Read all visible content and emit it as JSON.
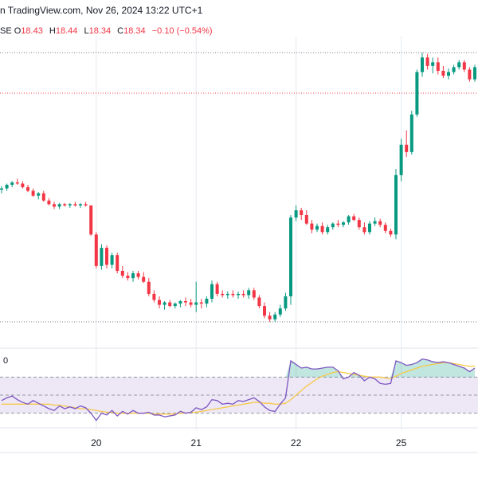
{
  "header": {
    "publish_text": "n TradingView.com, Nov 26, 2024 13:22 UTC+1"
  },
  "ohlc": {
    "exchange_fragment": "SE",
    "open_label": "O",
    "open": "18.43",
    "high_label": "H",
    "high": "18.44",
    "low_label": "L",
    "low": "18.34",
    "close_label": "C",
    "close": "18.34",
    "change": "−0.10 (−0.54%)"
  },
  "rsi_label": "0",
  "colors": {
    "up": "#089981",
    "down": "#f23645",
    "rsi_line": "#7e57c2",
    "rsi_ma": "#f7c948",
    "rsi_band": "#ede7f6",
    "grid": "#e6e9f0"
  },
  "chart_data": {
    "type": "candlestick",
    "x_tick_labels": [
      "20",
      "21",
      "22",
      "25"
    ],
    "price_reference_lines": [
      "dotted-top",
      "dotted-mid",
      "dotted-low"
    ],
    "candles": [
      {
        "o": 43,
        "h": 46,
        "l": 40,
        "c": 44
      },
      {
        "o": 44,
        "h": 48,
        "l": 42,
        "c": 47
      },
      {
        "o": 47,
        "h": 50,
        "l": 45,
        "c": 49
      },
      {
        "o": 49,
        "h": 52,
        "l": 47,
        "c": 48
      },
      {
        "o": 48,
        "h": 50,
        "l": 44,
        "c": 45
      },
      {
        "o": 45,
        "h": 47,
        "l": 41,
        "c": 42
      },
      {
        "o": 42,
        "h": 44,
        "l": 37,
        "c": 38
      },
      {
        "o": 38,
        "h": 41,
        "l": 35,
        "c": 40
      },
      {
        "o": 40,
        "h": 42,
        "l": 33,
        "c": 34
      },
      {
        "o": 34,
        "h": 36,
        "l": 30,
        "c": 31
      },
      {
        "o": 31,
        "h": 33,
        "l": 27,
        "c": 29
      },
      {
        "o": 29,
        "h": 32,
        "l": 27,
        "c": 31
      },
      {
        "o": 31,
        "h": 32,
        "l": 29,
        "c": 30
      },
      {
        "o": 30,
        "h": 32,
        "l": 28,
        "c": 31
      },
      {
        "o": 31,
        "h": 33,
        "l": 29,
        "c": 30
      },
      {
        "o": 30,
        "h": 32,
        "l": 28,
        "c": 31
      },
      {
        "o": 31,
        "h": 33,
        "l": 29,
        "c": 30
      },
      {
        "o": 30,
        "h": 30,
        "l": 5,
        "c": 6
      },
      {
        "o": 6,
        "h": 8,
        "l": -22,
        "c": -20
      },
      {
        "o": -20,
        "h": -2,
        "l": -23,
        "c": -5
      },
      {
        "o": -5,
        "h": -3,
        "l": -22,
        "c": -19
      },
      {
        "o": -19,
        "h": -9,
        "l": -22,
        "c": -11
      },
      {
        "o": -11,
        "h": -9,
        "l": -26,
        "c": -24
      },
      {
        "o": -24,
        "h": -20,
        "l": -30,
        "c": -28
      },
      {
        "o": -28,
        "h": -25,
        "l": -32,
        "c": -30
      },
      {
        "o": -30,
        "h": -24,
        "l": -33,
        "c": -26
      },
      {
        "o": -26,
        "h": -24,
        "l": -31,
        "c": -29
      },
      {
        "o": -29,
        "h": -25,
        "l": -34,
        "c": -33
      },
      {
        "o": -33,
        "h": -30,
        "l": -45,
        "c": -43
      },
      {
        "o": -43,
        "h": -40,
        "l": -50,
        "c": -48
      },
      {
        "o": -48,
        "h": -45,
        "l": -55,
        "c": -52
      },
      {
        "o": -52,
        "h": -49,
        "l": -56,
        "c": -50
      },
      {
        "o": -50,
        "h": -48,
        "l": -54,
        "c": -53
      },
      {
        "o": -53,
        "h": -50,
        "l": -55,
        "c": -51
      },
      {
        "o": -51,
        "h": -48,
        "l": -54,
        "c": -49
      },
      {
        "o": -49,
        "h": -46,
        "l": -53,
        "c": -50
      },
      {
        "o": -50,
        "h": -47,
        "l": -54,
        "c": -52
      },
      {
        "o": -52,
        "h": -33,
        "l": -58,
        "c": -50
      },
      {
        "o": -50,
        "h": -47,
        "l": -55,
        "c": -51
      },
      {
        "o": -51,
        "h": -45,
        "l": -54,
        "c": -47
      },
      {
        "o": -47,
        "h": -32,
        "l": -50,
        "c": -35
      },
      {
        "o": -35,
        "h": -33,
        "l": -45,
        "c": -43
      },
      {
        "o": -43,
        "h": -40,
        "l": -46,
        "c": -44
      },
      {
        "o": -44,
        "h": -41,
        "l": -47,
        "c": -43
      },
      {
        "o": -43,
        "h": -40,
        "l": -46,
        "c": -44
      },
      {
        "o": -44,
        "h": -41,
        "l": -47,
        "c": -43
      },
      {
        "o": -43,
        "h": -40,
        "l": -46,
        "c": -44
      },
      {
        "o": -44,
        "h": -38,
        "l": -47,
        "c": -40
      },
      {
        "o": -40,
        "h": -38,
        "l": -48,
        "c": -46
      },
      {
        "o": -46,
        "h": -44,
        "l": -55,
        "c": -53
      },
      {
        "o": -53,
        "h": -50,
        "l": -63,
        "c": -61
      },
      {
        "o": -61,
        "h": -58,
        "l": -66,
        "c": -64
      },
      {
        "o": -64,
        "h": -58,
        "l": -66,
        "c": -60
      },
      {
        "o": -60,
        "h": -52,
        "l": -62,
        "c": -55
      },
      {
        "o": -55,
        "h": -42,
        "l": -57,
        "c": -45
      },
      {
        "o": -45,
        "h": 22,
        "l": -52,
        "c": 20
      },
      {
        "o": 20,
        "h": 30,
        "l": 17,
        "c": 26
      },
      {
        "o": 26,
        "h": 28,
        "l": 18,
        "c": 22
      },
      {
        "o": 22,
        "h": 26,
        "l": 14,
        "c": 15
      },
      {
        "o": 15,
        "h": 18,
        "l": 7,
        "c": 10
      },
      {
        "o": 10,
        "h": 15,
        "l": 8,
        "c": 13
      },
      {
        "o": 13,
        "h": 16,
        "l": 6,
        "c": 8
      },
      {
        "o": 8,
        "h": 14,
        "l": 6,
        "c": 12
      },
      {
        "o": 12,
        "h": 16,
        "l": 10,
        "c": 15
      },
      {
        "o": 15,
        "h": 18,
        "l": 12,
        "c": 14
      },
      {
        "o": 14,
        "h": 17,
        "l": 12,
        "c": 16
      },
      {
        "o": 16,
        "h": 22,
        "l": 14,
        "c": 21
      },
      {
        "o": 21,
        "h": 23,
        "l": 17,
        "c": 18
      },
      {
        "o": 18,
        "h": 20,
        "l": 10,
        "c": 12
      },
      {
        "o": 12,
        "h": 16,
        "l": 6,
        "c": 8
      },
      {
        "o": 8,
        "h": 17,
        "l": 6,
        "c": 15
      },
      {
        "o": 15,
        "h": 20,
        "l": 13,
        "c": 17
      },
      {
        "o": 17,
        "h": 19,
        "l": 12,
        "c": 14
      },
      {
        "o": 14,
        "h": 16,
        "l": 7,
        "c": 9
      },
      {
        "o": 9,
        "h": 11,
        "l": 4,
        "c": 6
      },
      {
        "o": 6,
        "h": 60,
        "l": 2,
        "c": 55
      },
      {
        "o": 55,
        "h": 85,
        "l": 50,
        "c": 80
      },
      {
        "o": 80,
        "h": 92,
        "l": 70,
        "c": 74
      },
      {
        "o": 74,
        "h": 108,
        "l": 72,
        "c": 105
      },
      {
        "o": 105,
        "h": 142,
        "l": 103,
        "c": 140
      },
      {
        "o": 140,
        "h": 156,
        "l": 136,
        "c": 152
      },
      {
        "o": 152,
        "h": 155,
        "l": 142,
        "c": 145
      },
      {
        "o": 145,
        "h": 152,
        "l": 139,
        "c": 148
      },
      {
        "o": 148,
        "h": 152,
        "l": 138,
        "c": 141
      },
      {
        "o": 141,
        "h": 145,
        "l": 135,
        "c": 137
      },
      {
        "o": 137,
        "h": 143,
        "l": 134,
        "c": 140
      },
      {
        "o": 140,
        "h": 146,
        "l": 138,
        "c": 144
      },
      {
        "o": 144,
        "h": 150,
        "l": 142,
        "c": 148
      },
      {
        "o": 148,
        "h": 150,
        "l": 140,
        "c": 142
      },
      {
        "o": 142,
        "h": 144,
        "l": 132,
        "c": 134
      },
      {
        "o": 134,
        "h": 146,
        "l": 132,
        "c": 144
      }
    ],
    "rsi": [
      44,
      47,
      49,
      45,
      42,
      40,
      44,
      41,
      38,
      35,
      33,
      38,
      35,
      37,
      35,
      38,
      36,
      30,
      22,
      30,
      28,
      33,
      27,
      32,
      29,
      33,
      30,
      30,
      31,
      28,
      28,
      26,
      27,
      28,
      32,
      30,
      31,
      36,
      34,
      37,
      45,
      44,
      40,
      41,
      40,
      44,
      43,
      45,
      47,
      43,
      37,
      33,
      32,
      40,
      47,
      88,
      84,
      80,
      81,
      79,
      79,
      80,
      81,
      81,
      77,
      68,
      70,
      75,
      72,
      66,
      70,
      68,
      63,
      62,
      63,
      88,
      86,
      83,
      84,
      86,
      90,
      89,
      87,
      86,
      87,
      86,
      84,
      82,
      80,
      76,
      80
    ],
    "rsi_ma": [
      40,
      40,
      40,
      40,
      40,
      40,
      40,
      40,
      40,
      40,
      39,
      39,
      38,
      37,
      36,
      35,
      35,
      34,
      33,
      32,
      31,
      31,
      30,
      30,
      30,
      30,
      30,
      30,
      30,
      29,
      29,
      29,
      29,
      29,
      30,
      30,
      31,
      31,
      32,
      33,
      34,
      35,
      36,
      37,
      38,
      39,
      40,
      41,
      42,
      42,
      41,
      41,
      40,
      40,
      41,
      45,
      50,
      55,
      60,
      64,
      68,
      71,
      73,
      75,
      76,
      75,
      74,
      73,
      72,
      71,
      70,
      70,
      70,
      69,
      68,
      71,
      74,
      76,
      78,
      80,
      82,
      83,
      84,
      85,
      86,
      86,
      85,
      84,
      83,
      82,
      82
    ],
    "rsi_levels": [
      70,
      50,
      30
    ]
  }
}
